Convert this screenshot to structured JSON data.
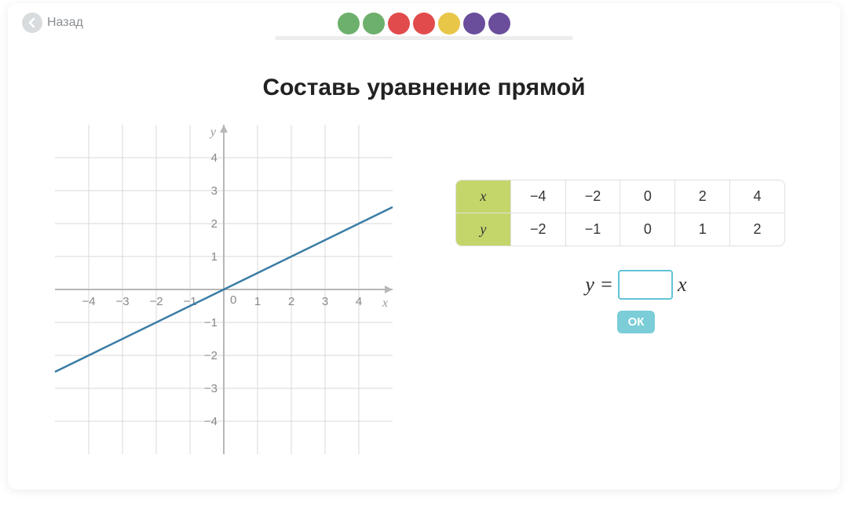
{
  "nav": {
    "back_label": "Назад"
  },
  "progress": {
    "dot_colors": [
      "#6db06d",
      "#6db06d",
      "#e24b4b",
      "#e24b4b",
      "#e8c647",
      "#6a4e9c",
      "#6a4e9c"
    ]
  },
  "title": "Составь уравнение прямой",
  "chart": {
    "type": "line",
    "xlim": [
      -5,
      5
    ],
    "ylim": [
      -5,
      5
    ],
    "xticks": [
      -4,
      -3,
      -2,
      -1,
      0,
      1,
      2,
      3,
      4
    ],
    "yticks": [
      -4,
      -3,
      -2,
      -1,
      1,
      2,
      3,
      4
    ],
    "x_axis_label": "x",
    "y_axis_label": "y",
    "grid_color": "#d8d8d8",
    "axis_color": "#b8b8b8",
    "line_color": "#3a7ca5",
    "line_points": [
      [
        -5,
        -2.5
      ],
      [
        5,
        2.5
      ]
    ],
    "background_color": "#ffffff",
    "tick_fontsize": 15,
    "axis_label_fontsize": 16
  },
  "table": {
    "columns": [
      "x",
      "−4",
      "−2",
      "0",
      "2",
      "4"
    ],
    "rows": [
      [
        "y",
        "−2",
        "−1",
        "0",
        "1",
        "2"
      ]
    ],
    "header_bg": "#c4d66a",
    "border_color": "#e0e0e0"
  },
  "equation": {
    "prefix": "y =",
    "suffix": "x",
    "input_value": "",
    "ok_label": "ОК"
  }
}
